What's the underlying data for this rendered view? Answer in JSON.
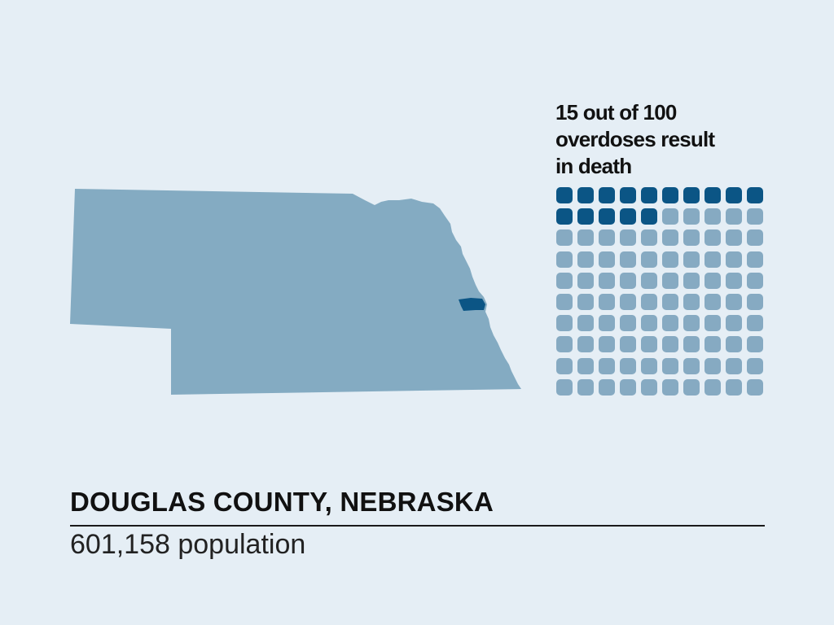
{
  "stat": {
    "lines": [
      "15 out of 100",
      "overdoses result",
      "in death"
    ],
    "highlighted": 15,
    "total": 100,
    "columns": 10
  },
  "location": {
    "name": "DOUGLAS COUNTY, NEBRASKA",
    "population_label": "601,158 population"
  },
  "map": {
    "state": "Nebraska",
    "highlighted_county": "Douglas County"
  },
  "colors": {
    "background": "#e5eef5",
    "state_fill": "#84abc2",
    "county_fill": "#0b5585",
    "death_cell": "#0b5585",
    "survival_cell": "#86aac2",
    "text": "#111111"
  }
}
